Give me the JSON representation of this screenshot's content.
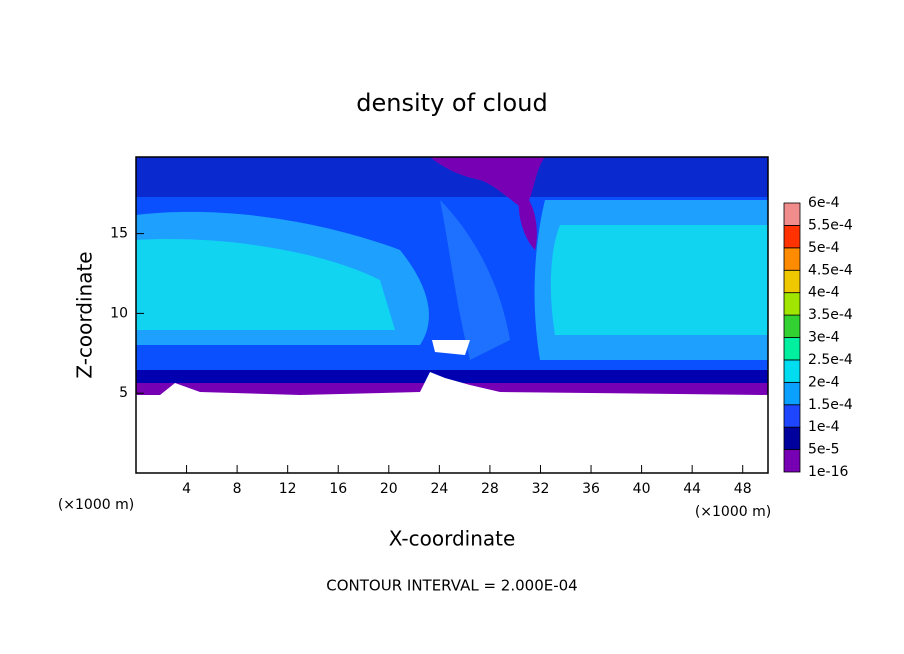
{
  "chart_data": {
    "type": "contour",
    "title": "density of cloud",
    "x_label": "X-coordinate",
    "y_label": "Z-coordinate",
    "x_unit": "(×1000 m)",
    "footer": "CONTOUR INTERVAL = 2.000E-04",
    "xlim": [
      0,
      50
    ],
    "xticks": [
      4,
      8,
      12,
      16,
      20,
      24,
      28,
      32,
      36,
      40,
      44,
      48
    ],
    "ylim": [
      0,
      19.8
    ],
    "yticks": [
      5,
      10,
      15
    ],
    "levels": [
      {
        "value": 1e-16,
        "label": "1e-16"
      },
      {
        "value": 5e-05,
        "label": "5e-5"
      },
      {
        "value": 0.0001,
        "label": "1e-4"
      },
      {
        "value": 0.00015,
        "label": "1.5e-4"
      },
      {
        "value": 0.0002,
        "label": "2e-4"
      },
      {
        "value": 0.00025,
        "label": "2.5e-4"
      },
      {
        "value": 0.0003,
        "label": "3e-4"
      },
      {
        "value": 0.00035,
        "label": "3.5e-4"
      },
      {
        "value": 0.0004,
        "label": "4e-4"
      },
      {
        "value": 0.00045,
        "label": "4.5e-4"
      },
      {
        "value": 0.0005,
        "label": "5e-4"
      },
      {
        "value": 0.00055,
        "label": "5.5e-4"
      },
      {
        "value": 0.0006,
        "label": "6e-4"
      }
    ],
    "level_colors": [
      "#7800b4",
      "#00009c",
      "#1e46ff",
      "#0aa0ff",
      "#00dcf0",
      "#00f0a0",
      "#32d232",
      "#a0e600",
      "#f0c800",
      "#ff8c00",
      "#ff3200",
      "#f08c8c"
    ]
  }
}
